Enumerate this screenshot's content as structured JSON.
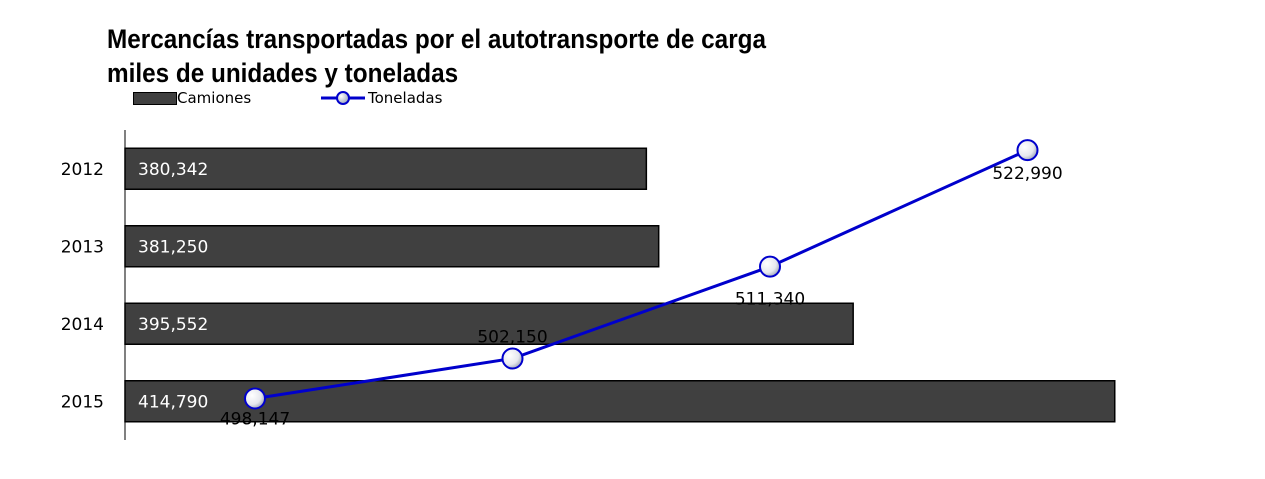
{
  "chart_data": {
    "type": "bar+line",
    "title_line1": "Mercancías transportadas por el autotransporte de carga",
    "title_line2": "miles de unidades y toneladas",
    "categories": [
      "2012",
      "2013",
      "2014",
      "2015"
    ],
    "series": [
      {
        "name": "Camiones",
        "type": "bar",
        "orientation": "horizontal",
        "values": [
          380342,
          381250,
          395552,
          414790
        ],
        "labels": [
          "380,342",
          "381,250",
          "395,552",
          "414,790"
        ],
        "color": "#404040"
      },
      {
        "name": "Toneladas",
        "type": "line",
        "values": [
          498147,
          502150,
          511340,
          522990
        ],
        "labels": [
          "498,147",
          "502,150",
          "511,340",
          "522,990"
        ],
        "color": "#0000cc"
      }
    ],
    "bar_axis_range": [
      342000,
      416500
    ],
    "line_axis_range": [
      494000,
      525000
    ],
    "legend_position": "top-left",
    "grid": false
  }
}
